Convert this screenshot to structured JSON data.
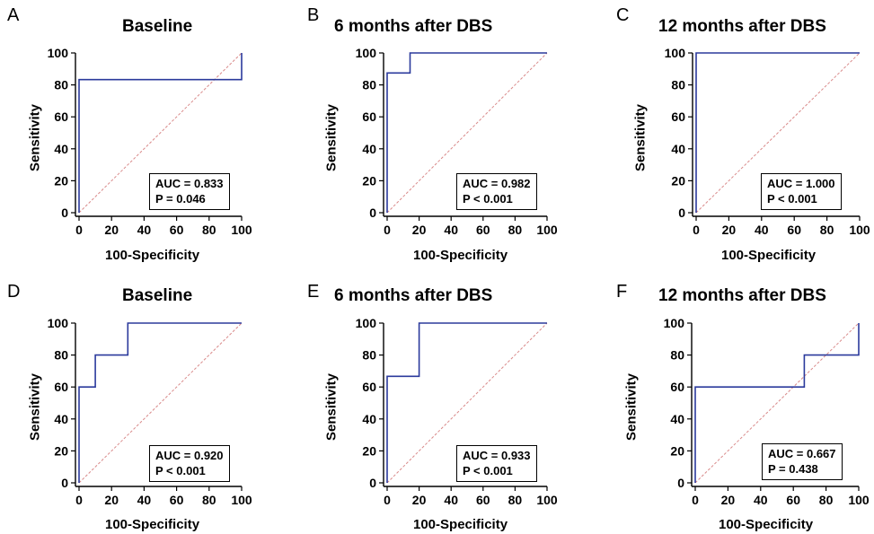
{
  "colors": {
    "roc": "#2b3a9c",
    "diagonal": "#d98a8a",
    "axis": "#000000"
  },
  "chart_data": [
    {
      "type": "line",
      "panel": "A",
      "title": "Baseline",
      "xlabel": "100-Specificity",
      "ylabel": "Sensitivity",
      "xlim": [
        0,
        100
      ],
      "ylim": [
        0,
        100
      ],
      "xticks": [
        0,
        20,
        40,
        60,
        80,
        100
      ],
      "yticks": [
        0,
        20,
        40,
        60,
        80,
        100
      ],
      "auc_text": "AUC = 0.833",
      "p_text": "P = 0.046",
      "roc": {
        "x": [
          0,
          0,
          100,
          100
        ],
        "y": [
          0,
          83.3,
          83.3,
          100
        ]
      }
    },
    {
      "type": "line",
      "panel": "B",
      "title": "6 months after DBS",
      "xlabel": "100-Specificity",
      "ylabel": "Sensitivity",
      "xlim": [
        0,
        100
      ],
      "ylim": [
        0,
        100
      ],
      "xticks": [
        0,
        20,
        40,
        60,
        80,
        100
      ],
      "yticks": [
        0,
        20,
        40,
        60,
        80,
        100
      ],
      "auc_text": "AUC = 0.982",
      "p_text": "P < 0.001",
      "roc": {
        "x": [
          0,
          0,
          14.3,
          14.3,
          100
        ],
        "y": [
          0,
          87.5,
          87.5,
          100,
          100
        ]
      }
    },
    {
      "type": "line",
      "panel": "C",
      "title": "12 months after DBS",
      "xlabel": "100-Specificity",
      "ylabel": "Sensitivity",
      "xlim": [
        0,
        100
      ],
      "ylim": [
        0,
        100
      ],
      "xticks": [
        0,
        20,
        40,
        60,
        80,
        100
      ],
      "yticks": [
        0,
        20,
        40,
        60,
        80,
        100
      ],
      "auc_text": "AUC = 1.000",
      "p_text": "P < 0.001",
      "roc": {
        "x": [
          0,
          0,
          100
        ],
        "y": [
          0,
          100,
          100
        ]
      }
    },
    {
      "type": "line",
      "panel": "D",
      "title": "Baseline",
      "xlabel": "100-Specificity",
      "ylabel": "Sensitivity",
      "xlim": [
        0,
        100
      ],
      "ylim": [
        0,
        100
      ],
      "xticks": [
        0,
        20,
        40,
        60,
        80,
        100
      ],
      "yticks": [
        0,
        20,
        40,
        60,
        80,
        100
      ],
      "auc_text": "AUC = 0.920",
      "p_text": "P < 0.001",
      "roc": {
        "x": [
          0,
          0,
          10,
          10,
          30,
          30,
          100
        ],
        "y": [
          0,
          60,
          60,
          80,
          80,
          100,
          100
        ]
      }
    },
    {
      "type": "line",
      "panel": "E",
      "title": "6 months after DBS",
      "xlabel": "100-Specificity",
      "ylabel": "Sensitivity",
      "xlim": [
        0,
        100
      ],
      "ylim": [
        0,
        100
      ],
      "xticks": [
        0,
        20,
        40,
        60,
        80,
        100
      ],
      "yticks": [
        0,
        20,
        40,
        60,
        80,
        100
      ],
      "auc_text": "AUC = 0.933",
      "p_text": "P < 0.001",
      "roc": {
        "x": [
          0,
          0,
          20,
          20,
          100
        ],
        "y": [
          0,
          66.7,
          66.7,
          100,
          100
        ]
      }
    },
    {
      "type": "line",
      "panel": "F",
      "title": "12 months after DBS",
      "xlabel": "100-Specificity",
      "ylabel": "Sensitivity",
      "xlim": [
        0,
        100
      ],
      "ylim": [
        0,
        100
      ],
      "xticks": [
        0,
        20,
        40,
        60,
        80,
        100
      ],
      "yticks": [
        0,
        20,
        40,
        60,
        80,
        100
      ],
      "auc_text": "AUC = 0.667",
      "p_text": "P = 0.438",
      "roc": {
        "x": [
          0,
          0,
          66.7,
          66.7,
          100,
          100
        ],
        "y": [
          0,
          60,
          60,
          80,
          80,
          100
        ]
      }
    }
  ]
}
